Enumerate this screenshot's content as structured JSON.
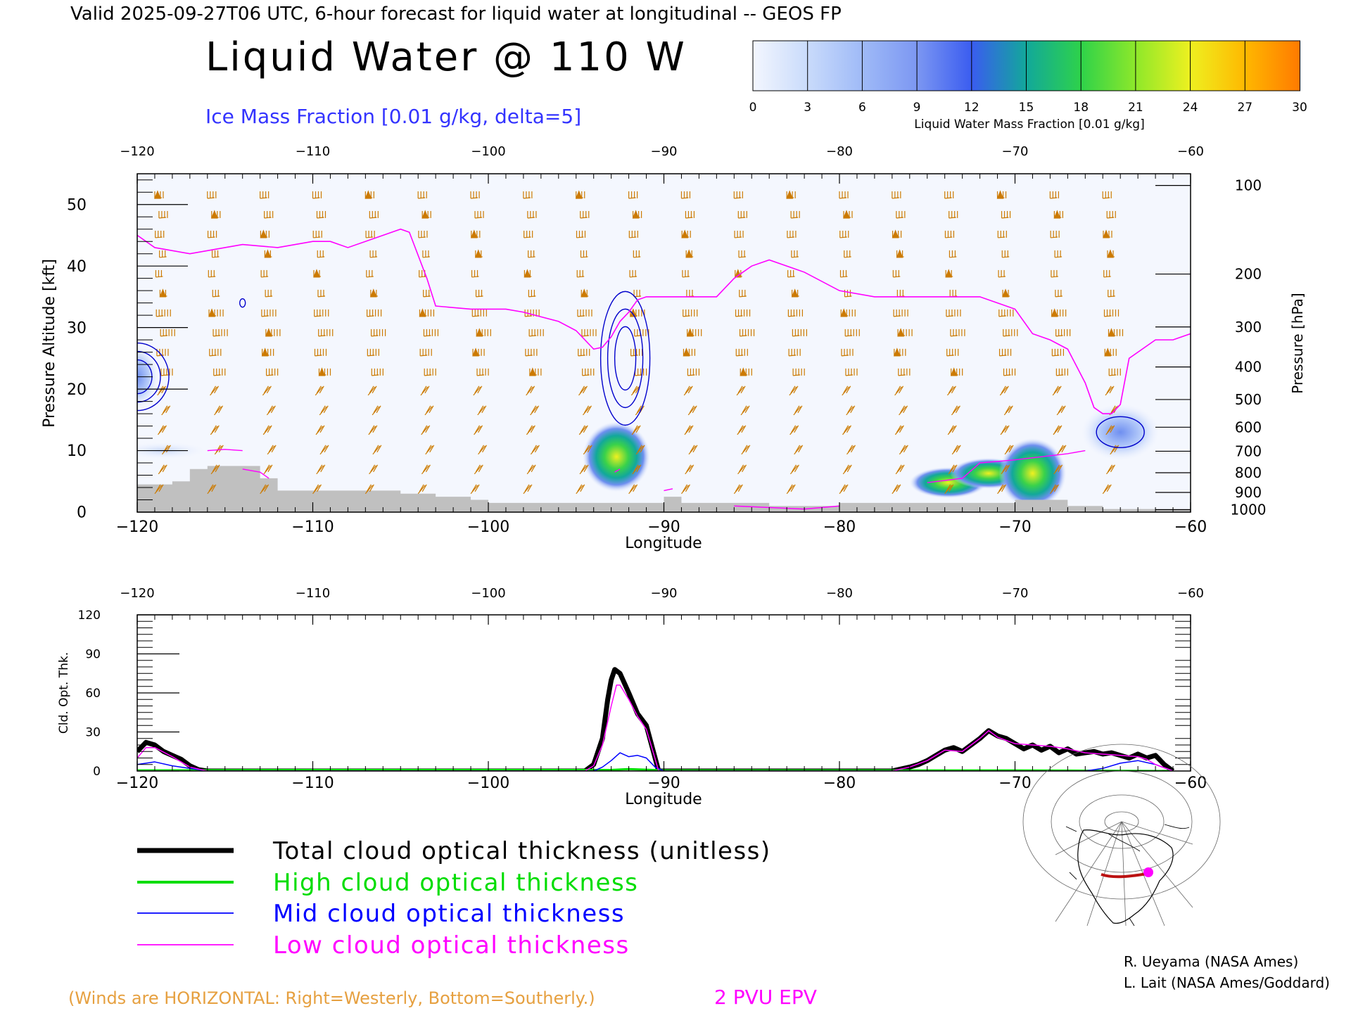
{
  "header": {
    "valid_line": "Valid 2025-09-27T06 UTC, 6-hour forecast for liquid water at longitudinal -- GEOS FP",
    "main_title": "Liquid Water @ 110 W",
    "ice_subtitle": "Ice Mass Fraction [0.01 g/kg, delta=5]"
  },
  "colorbar": {
    "label": "Liquid Water Mass Fraction [0.01 g/kg]",
    "ticks": [
      "0",
      "3",
      "6",
      "9",
      "12",
      "15",
      "18",
      "21",
      "24",
      "27",
      "30"
    ],
    "colors": [
      "#f3f6fe",
      "#c9dbfb",
      "#9fbaf7",
      "#7c97f2",
      "#3a5cf0",
      "#12a89a",
      "#2ed24a",
      "#8ee82a",
      "#eef020",
      "#ffb800",
      "#ff7a00",
      "#ff3000"
    ]
  },
  "chart_data": [
    {
      "type": "heatmap",
      "title": "Liquid Water @ 110 W",
      "xlabel": "Longitude",
      "ylabel": "Pressure Altitude [kft]",
      "ylabel_right": "Pressure [hPa]",
      "xlim": [
        -120,
        -60
      ],
      "ylim": [
        0,
        55
      ],
      "x_ticks": [
        "-120",
        "-110",
        "-100",
        "-90",
        "-80",
        "-70",
        "-60"
      ],
      "y_ticks": [
        "0",
        "10",
        "20",
        "30",
        "40",
        "50"
      ],
      "pressure_ticks": [
        {
          "label": "100",
          "kft": 53.1
        },
        {
          "label": "200",
          "kft": 38.7
        },
        {
          "label": "300",
          "kft": 30.1
        },
        {
          "label": "400",
          "kft": 23.6
        },
        {
          "label": "500",
          "kft": 18.3
        },
        {
          "label": "600",
          "kft": 13.8
        },
        {
          "label": "700",
          "kft": 9.9
        },
        {
          "label": "800",
          "kft": 6.4
        },
        {
          "label": "900",
          "kft": 3.2
        },
        {
          "label": "1000",
          "kft": 0.4
        }
      ],
      "liquid_water_blobs": [
        {
          "lon": -92.7,
          "kft": 9.0,
          "value": 20
        },
        {
          "lon": -73.8,
          "kft": 4.8,
          "value": 15
        },
        {
          "lon": -71.5,
          "kft": 6.3,
          "value": 16
        },
        {
          "lon": -69.0,
          "kft": 6.3,
          "value": 19
        },
        {
          "lon": -64.0,
          "kft": 13.0,
          "value": 8
        },
        {
          "lon": -120.0,
          "kft": 22.0,
          "value": 5
        },
        {
          "lon": -118.5,
          "kft": 10.0,
          "value": 3
        }
      ],
      "epv_2pvu_line": {
        "lon": [
          -120,
          -119,
          -117,
          -116,
          -115,
          -114,
          -112,
          -111,
          -110,
          -109,
          -108,
          -106,
          -105,
          -104.5,
          -103.5,
          -103,
          -101,
          -99,
          -98,
          -96,
          -95,
          -94,
          -93.5,
          -93,
          -92.5,
          -92,
          -91.5,
          -91,
          -90,
          -88,
          -87,
          -86,
          -85,
          -84,
          -82,
          -80,
          -78,
          -76,
          -74,
          -72,
          -71,
          -70,
          -69,
          -68,
          -67,
          -66,
          -65.5,
          -65,
          -64.5,
          -64,
          -63.5,
          -62,
          -61,
          -60
        ],
        "kft": [
          45,
          43,
          42,
          42.5,
          43,
          43.5,
          43,
          43.5,
          44,
          44,
          43,
          45,
          46,
          45.5,
          38,
          33.5,
          33,
          33,
          32.5,
          31,
          29.5,
          26.5,
          26.8,
          28.5,
          31,
          32.5,
          34.5,
          35,
          35,
          35,
          35,
          38,
          40,
          41,
          39,
          36,
          35,
          35,
          35,
          35,
          34,
          33,
          29,
          28,
          26.5,
          21,
          17,
          16,
          16,
          17.5,
          25,
          28,
          28,
          29
        ]
      },
      "ice_contour_centers": [
        {
          "lon": -120,
          "kft": 22,
          "levels": 3
        },
        {
          "lon": -92.2,
          "kft": 25,
          "levels": 3
        },
        {
          "lon": -64.0,
          "kft": 13,
          "levels": 1
        },
        {
          "lon": -114.0,
          "kft": 34,
          "levels": 1
        }
      ],
      "terrain": {
        "lon": [
          -120,
          -118,
          -117,
          -116,
          -114,
          -113,
          -112,
          -110,
          -108,
          -105,
          -103,
          -101,
          -100,
          -98,
          -95,
          -92,
          -90,
          -89,
          -87,
          -84,
          -82,
          -80,
          -76,
          -73,
          -70,
          -67,
          -65,
          -60
        ],
        "kft": [
          4.5,
          5,
          7,
          7.5,
          7.5,
          5.5,
          3.5,
          3.5,
          3.5,
          3.0,
          2.5,
          2.0,
          1.5,
          1.5,
          1.5,
          1.5,
          2.5,
          1.5,
          1.5,
          1.0,
          1.0,
          1.5,
          1.5,
          1.5,
          2.0,
          1.0,
          0.5,
          0.5
        ]
      }
    },
    {
      "type": "line",
      "xlabel": "Longitude",
      "ylabel": "Cld. Opt. Thk.",
      "xlim": [
        -120,
        -60
      ],
      "ylim": [
        0,
        120
      ],
      "x_ticks": [
        "-120",
        "-110",
        "-100",
        "-90",
        "-80",
        "-70",
        "-60"
      ],
      "y_ticks": [
        "0",
        "30",
        "60",
        "90",
        "120"
      ],
      "series": [
        {
          "name": "Total cloud optical thickness (unitless)",
          "color": "#000000",
          "x": [
            -120,
            -119.5,
            -119,
            -118.5,
            -118,
            -117.5,
            -117,
            -116.5,
            -116,
            -100,
            -94.5,
            -94,
            -93.5,
            -93.2,
            -93,
            -92.8,
            -92.5,
            -92,
            -91.5,
            -91,
            -90.6,
            -90.3,
            -80,
            -77,
            -76,
            -75.5,
            -75,
            -74.5,
            -74,
            -73.5,
            -73,
            -72.5,
            -72,
            -71.5,
            -71,
            -70.5,
            -70,
            -69.5,
            -69,
            -68.5,
            -68,
            -67.5,
            -67,
            -66.5,
            -66,
            -65.5,
            -65,
            -64.5,
            -64,
            -63.5,
            -63,
            -62.5,
            -62,
            -61.5,
            -61
          ],
          "y": [
            15,
            22,
            20,
            15,
            12,
            9,
            4,
            1,
            0,
            0,
            0,
            5,
            25,
            55,
            70,
            78,
            75,
            60,
            44,
            35,
            15,
            0,
            0,
            0,
            3,
            5,
            8,
            12,
            16,
            18,
            15,
            20,
            25,
            31,
            27,
            25,
            21,
            17,
            20,
            16,
            19,
            14,
            17,
            13,
            14,
            15,
            13,
            14,
            12,
            10,
            13,
            10,
            12,
            5,
            0
          ]
        },
        {
          "name": "High cloud optical thickness",
          "color": "#00dd00",
          "x": [
            -120,
            -110,
            -100,
            -93,
            -92,
            -91,
            -90,
            -80,
            -70,
            -61
          ],
          "y": [
            0.5,
            0.8,
            0.8,
            0.8,
            1.5,
            1,
            0.5,
            0.5,
            0.5,
            0
          ]
        },
        {
          "name": "Mid cloud optical thickness",
          "color": "#0000ff",
          "x": [
            -120,
            -119,
            -118,
            -117,
            -116,
            -100,
            -94,
            -93.5,
            -93,
            -92.5,
            -92,
            -91.5,
            -91,
            -90.5,
            -90,
            -80,
            -70,
            -66,
            -65,
            -64,
            -63,
            -62,
            -61
          ],
          "y": [
            5,
            7,
            4,
            2,
            0,
            0,
            0,
            3,
            8,
            14,
            11,
            12,
            10,
            3,
            0,
            0,
            0,
            0,
            2,
            6,
            8,
            5,
            0
          ]
        },
        {
          "name": "Low cloud optical thickness",
          "color": "#ff00ff",
          "x": [
            -120,
            -119.5,
            -119,
            -118,
            -117,
            -116,
            -100,
            -94.5,
            -94,
            -93.5,
            -93,
            -92.7,
            -92.5,
            -92,
            -91.5,
            -91,
            -90.6,
            -90.3,
            -80,
            -77,
            -76,
            -75,
            -74,
            -73,
            -72,
            -71.5,
            -71,
            -70,
            -69,
            -68,
            -67,
            -66,
            -65,
            -64,
            -63,
            -62.5,
            -62,
            -61
          ],
          "y": [
            10,
            18,
            18,
            11,
            3,
            0,
            0,
            0,
            4,
            20,
            50,
            66,
            66,
            55,
            42,
            32,
            14,
            0,
            0,
            0,
            3,
            8,
            16,
            15,
            25,
            31,
            26,
            21,
            20,
            19,
            17,
            14,
            13,
            12,
            11,
            9,
            5,
            0
          ]
        }
      ]
    }
  ],
  "legend": {
    "items": [
      {
        "label": "Total cloud optical thickness (unitless)",
        "color": "#000000"
      },
      {
        "label": "High cloud optical thickness",
        "color": "#00dd00"
      },
      {
        "label": "Mid cloud optical thickness",
        "color": "#0000ff"
      },
      {
        "label": "Low cloud optical thickness",
        "color": "#ff00ff"
      }
    ]
  },
  "footer": {
    "winds_note": "(Winds are HORIZONTAL: Right=Westerly, Bottom=Southerly.)",
    "epv_note": "2 PVU EPV",
    "credit_1": "R. Ueyama (NASA Ames)",
    "credit_2": "L. Lait (NASA Ames/Goddard)"
  },
  "colors": {
    "wind_barb": "#cc7a00",
    "epv_line": "#ff00ff",
    "ice_contour": "#0000cc",
    "terrain": "#c0c0c0",
    "plot_background": "#f4f7fe",
    "ice_text": "#3333ff",
    "winds_text": "#e6a040"
  }
}
